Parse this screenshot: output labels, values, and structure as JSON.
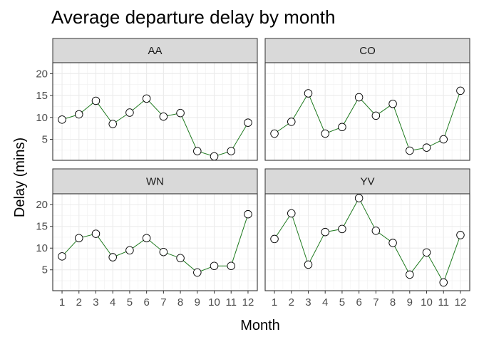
{
  "chart_data": {
    "type": "line",
    "title": "Average departure delay by month",
    "xlabel": "Month",
    "ylabel": "Delay (mins)",
    "x": [
      1,
      2,
      3,
      4,
      5,
      6,
      7,
      8,
      9,
      10,
      11,
      12
    ],
    "x_tick_labels": [
      "1",
      "2",
      "3",
      "4",
      "5",
      "6",
      "7",
      "8",
      "9",
      "10",
      "11",
      "12"
    ],
    "y_ticks": [
      5,
      10,
      15,
      20
    ],
    "y_tick_labels": [
      "5",
      "10",
      "15",
      "20"
    ],
    "xlim": [
      0.45,
      12.55
    ],
    "ylim": [
      0.2,
      22.5
    ],
    "grid": true,
    "line_color": "#1f7a1f",
    "marker_fill": "#ffffff",
    "marker_stroke": "#000000",
    "strip_fill": "#d9d9d9",
    "panels": [
      {
        "name": "AA",
        "values": [
          9.5,
          10.7,
          13.8,
          8.5,
          11.1,
          14.3,
          10.2,
          11.0,
          2.3,
          1.1,
          2.3,
          8.8
        ]
      },
      {
        "name": "CO",
        "values": [
          6.3,
          9.0,
          15.5,
          6.3,
          7.8,
          14.6,
          10.4,
          13.1,
          2.4,
          3.1,
          5.0,
          16.1
        ]
      },
      {
        "name": "WN",
        "values": [
          8.1,
          12.3,
          13.3,
          7.9,
          9.5,
          12.3,
          9.1,
          7.7,
          4.4,
          5.9,
          5.9,
          17.8
        ]
      },
      {
        "name": "YV",
        "values": [
          12.1,
          18.0,
          6.2,
          13.7,
          14.4,
          21.5,
          14.0,
          11.2,
          3.9,
          9.0,
          2.1,
          13.0
        ]
      }
    ]
  }
}
